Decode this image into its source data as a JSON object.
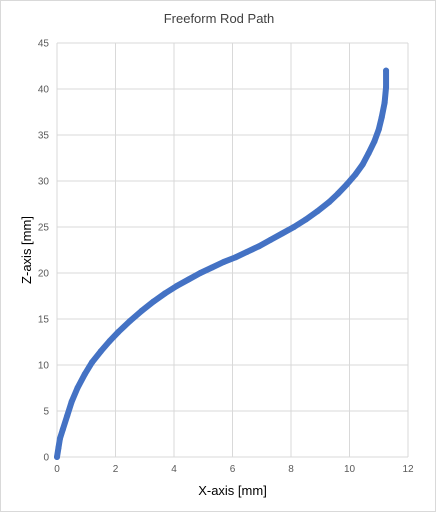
{
  "chart_data": {
    "type": "scatter",
    "title": "Freeform Rod Path",
    "xlabel": "X-axis [mm]",
    "ylabel": "Z-axis [mm]",
    "xlim": [
      0,
      12
    ],
    "ylim": [
      0,
      45
    ],
    "xticks": [
      0,
      2,
      4,
      6,
      8,
      10,
      12
    ],
    "yticks": [
      0,
      5,
      10,
      15,
      20,
      25,
      30,
      35,
      40,
      45
    ],
    "grid": true,
    "legend": "none",
    "series": [
      {
        "color": "#4472c4",
        "x": [
          0.0,
          0.05,
          0.1,
          0.2,
          0.35,
          0.5,
          0.7,
          0.95,
          1.2,
          1.5,
          1.8,
          2.1,
          2.5,
          2.9,
          3.3,
          3.7,
          4.1,
          4.5,
          4.9,
          5.3,
          5.7,
          6.1,
          6.5,
          6.9,
          7.3,
          7.7,
          8.1,
          8.5,
          8.9,
          9.3,
          9.6,
          9.9,
          10.2,
          10.45,
          10.65,
          10.85,
          11.0,
          11.1,
          11.2,
          11.25,
          11.25
        ],
        "y": [
          0.0,
          1.0,
          2.0,
          3.0,
          4.5,
          6.0,
          7.5,
          9.0,
          10.3,
          11.5,
          12.6,
          13.6,
          14.8,
          15.9,
          16.9,
          17.8,
          18.6,
          19.3,
          20.0,
          20.6,
          21.2,
          21.7,
          22.3,
          22.9,
          23.6,
          24.3,
          25.0,
          25.8,
          26.7,
          27.7,
          28.6,
          29.6,
          30.7,
          31.8,
          33.0,
          34.3,
          35.6,
          36.9,
          38.5,
          40.2,
          42.0
        ]
      }
    ]
  }
}
